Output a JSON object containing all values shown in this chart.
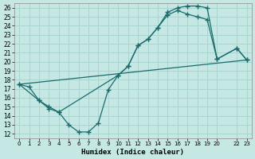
{
  "bg_color": "#c5e8e5",
  "grid_color": "#aad4d0",
  "line_color": "#1a6b6b",
  "xlabel": "Humidex (Indice chaleur)",
  "xlim": [
    -0.5,
    23.5
  ],
  "ylim": [
    11.5,
    26.5
  ],
  "xticks": [
    0,
    1,
    2,
    3,
    4,
    5,
    6,
    7,
    8,
    9,
    10,
    11,
    12,
    13,
    14,
    15,
    16,
    17,
    18,
    19,
    20,
    22,
    23
  ],
  "yticks": [
    12,
    13,
    14,
    15,
    16,
    17,
    18,
    19,
    20,
    21,
    22,
    23,
    24,
    25,
    26
  ],
  "line1_x": [
    0,
    1,
    2,
    3,
    4,
    5,
    6,
    7,
    8,
    9,
    10,
    11,
    12,
    13,
    14,
    15,
    16,
    17,
    18,
    19,
    20,
    22,
    23
  ],
  "line1_y": [
    17.5,
    17.2,
    15.7,
    14.8,
    14.4,
    13.0,
    12.2,
    12.2,
    13.2,
    16.9,
    18.5,
    19.5,
    21.8,
    22.5,
    23.8,
    25.5,
    26.0,
    26.2,
    26.2,
    26.0,
    20.3,
    21.5,
    20.2
  ],
  "line2_x": [
    0,
    2,
    3,
    4,
    10,
    11,
    12,
    13,
    14,
    15,
    16,
    17,
    18,
    19,
    20,
    22,
    23
  ],
  "line2_y": [
    17.5,
    15.7,
    15.0,
    14.4,
    18.5,
    19.5,
    21.8,
    22.5,
    23.8,
    25.2,
    25.7,
    25.3,
    25.0,
    24.7,
    20.3,
    21.5,
    20.2
  ],
  "line3_x": [
    0,
    23
  ],
  "line3_y": [
    17.5,
    20.2
  ]
}
